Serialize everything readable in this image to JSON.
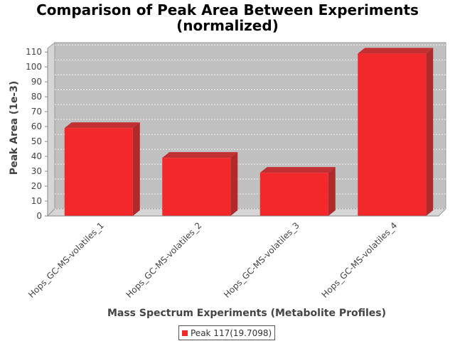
{
  "chart_data": {
    "type": "bar",
    "title_lines": [
      "Comparison of Peak Area Between Experiments",
      "(normalized)"
    ],
    "xlabel": "Mass Spectrum Experiments (Metabolite Profiles)",
    "ylabel": "Peak Area (1e-3)",
    "categories": [
      "Hops_GC-MS-volatiles_1",
      "Hops_GC-MS-volatiles_2",
      "Hops_GC-MS-volatiles_3",
      "Hops_GC-MS-volatiles_4"
    ],
    "series": [
      {
        "name": "Peak 117(19.7098)",
        "values": [
          59,
          39,
          29,
          109
        ]
      }
    ],
    "ylim": [
      0,
      110
    ],
    "yticks": [
      0,
      10,
      20,
      30,
      40,
      50,
      60,
      70,
      80,
      90,
      100,
      110
    ],
    "legend_position": "bottom",
    "grid": true,
    "colors": {
      "bar": "#f2282b",
      "bar_side": "#b02a2c",
      "bar_top": "#c23033",
      "plot_bg": "#c0c0c0",
      "wall": "#d6d6d6"
    }
  }
}
